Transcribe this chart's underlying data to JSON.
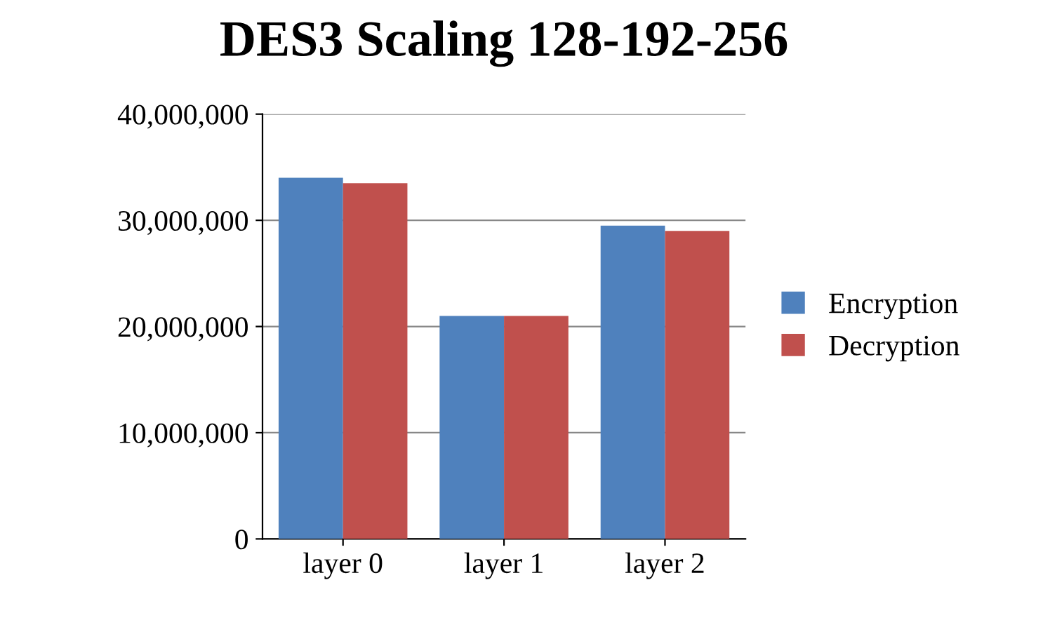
{
  "chart_data": {
    "type": "bar",
    "title": "DES3 Scaling 128-192-256",
    "categories": [
      "layer 0",
      "layer 1",
      "layer 2"
    ],
    "series": [
      {
        "name": "Encryption",
        "color": "#4f81bd",
        "values": [
          34000000,
          21000000,
          29500000
        ]
      },
      {
        "name": "Decryption",
        "color": "#c0504d",
        "values": [
          33500000,
          21000000,
          29000000
        ]
      }
    ],
    "ylim": [
      0,
      40000000
    ],
    "yticks": [
      {
        "value": 0,
        "label": "0"
      },
      {
        "value": 10000000,
        "label": "10,000,000"
      },
      {
        "value": 20000000,
        "label": "20,000,000"
      },
      {
        "value": 30000000,
        "label": "30,000,000"
      },
      {
        "value": 40000000,
        "label": "40,000,000"
      }
    ],
    "grid": "y",
    "legend": "right"
  }
}
